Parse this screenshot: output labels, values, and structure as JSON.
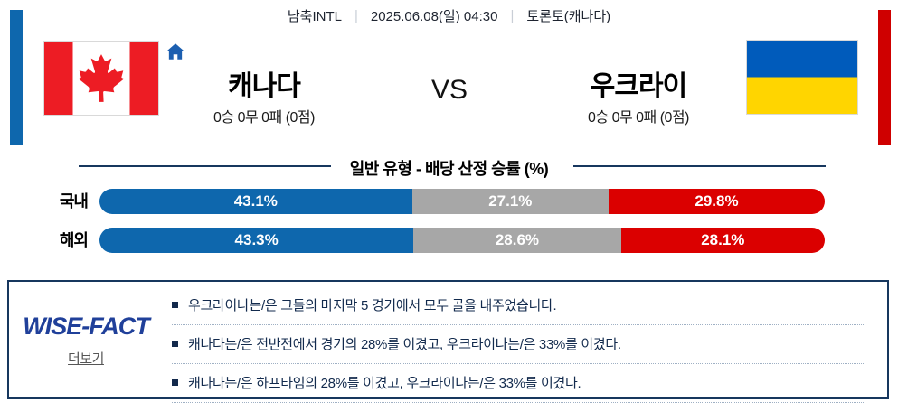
{
  "header": {
    "league": "남축INTL",
    "datetime": "2025.06.08(일) 04:30",
    "venue": "토론토(캐나다)",
    "separator": "|"
  },
  "match": {
    "home": {
      "name": "캐나다",
      "record": "0승 0무 0패 (0점)",
      "flag": "canada-flag"
    },
    "away": {
      "name": "우크라이",
      "record": "0승 0무 0패 (0점)",
      "flag": "ukraine-flag"
    },
    "vs_label": "VS"
  },
  "chart_data": {
    "type": "bar",
    "title": "일반 유형 - 배당 산정 승률 (%)",
    "categories": [
      "국내",
      "해외"
    ],
    "series": [
      {
        "name": "home-win",
        "color": "#0e67ad",
        "values": [
          43.1,
          43.3
        ]
      },
      {
        "name": "draw",
        "color": "#a7a7a7",
        "values": [
          27.1,
          28.6
        ]
      },
      {
        "name": "away-win",
        "color": "#db0000",
        "values": [
          29.8,
          28.1
        ]
      }
    ],
    "value_suffix": "%",
    "xlim": [
      0,
      100
    ],
    "orientation": "horizontal-stacked"
  },
  "wise_fact": {
    "logo": "WISE-FACT",
    "more_label": "더보기",
    "facts": [
      "우크라이나는/은 그들의 마지막 5 경기에서 모두 골을 내주었습니다.",
      "캐나다는/은 전반전에서 경기의 28%를 이겼고, 우크라이나는/은 33%를 이겼다.",
      "캐나다는/은 하프타임의 28%를 이겼고, 우크라이나는/은 33%를 이겼다."
    ]
  },
  "colors": {
    "accent_left": "#0e67ad",
    "accent_right": "#cf0000",
    "navy": "#17375e",
    "wise_logo_blue": "#20409a",
    "home_icon_blue": "#1c5fb0",
    "canada_red": "#ed1c24",
    "ukraine_blue": "#005bbb",
    "ukraine_yellow": "#ffd500"
  }
}
